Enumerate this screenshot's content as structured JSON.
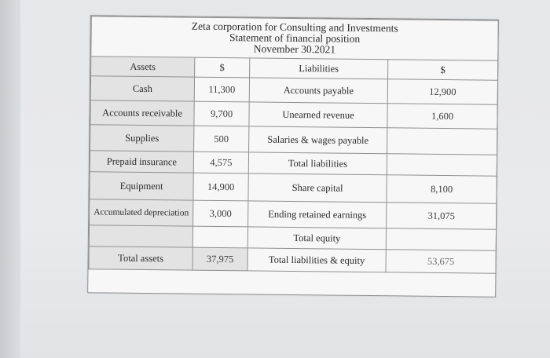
{
  "document": {
    "title_line1": "Zeta corporation for Consulting and Investments",
    "title_line2": "Statement of financial position",
    "title_line3": "November 30.2021"
  },
  "header": {
    "assets": "Assets",
    "currency_left": "$",
    "liabilities": "Liabilities",
    "currency_right": "$"
  },
  "rows": [
    {
      "asset": "Cash",
      "asset_amount": "11,300",
      "liability": "Accounts payable",
      "liability_amount": "12,900"
    },
    {
      "asset": "Accounts receivable",
      "asset_amount": "9,700",
      "liability": "Unearned revenue",
      "liability_amount": "1,600"
    },
    {
      "asset": "Supplies",
      "asset_amount": "500",
      "liability": "Salaries & wages payable",
      "liability_amount": ""
    },
    {
      "asset": "Prepaid insurance",
      "asset_amount": "4,575",
      "liability": "Total liabilities",
      "liability_amount": ""
    },
    {
      "asset": "Equipment",
      "asset_amount": "14,900",
      "liability": "Share capital",
      "liability_amount": "8,100"
    },
    {
      "asset": "Accumulated depreciation",
      "asset_amount": "3,000",
      "liability": "Ending retained earnings",
      "liability_amount": "31,075"
    },
    {
      "asset": "",
      "asset_amount": "",
      "liability": "Total equity",
      "liability_amount": ""
    },
    {
      "asset": "Total assets",
      "asset_amount": "37,975",
      "liability": "Total liabilities & equity",
      "liability_amount": "53,675"
    }
  ]
}
